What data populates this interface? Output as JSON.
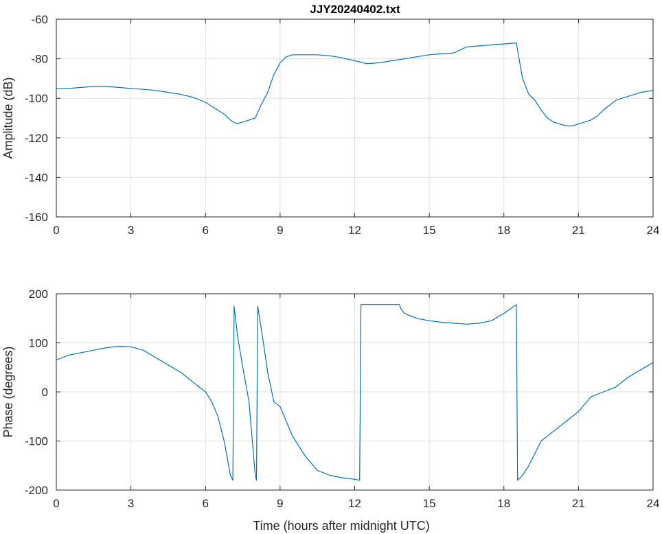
{
  "chart_data": [
    {
      "type": "line",
      "title": "JJY20240402.txt",
      "xlabel": "",
      "ylabel": "Amplitude (dB)",
      "xlim": [
        0,
        24
      ],
      "ylim": [
        -160,
        -60
      ],
      "xticks": [
        0,
        3,
        6,
        9,
        12,
        15,
        18,
        21,
        24
      ],
      "yticks": [
        -60,
        -80,
        -100,
        -120,
        -140,
        -160
      ],
      "ytick_labels": [
        "-60",
        "-80",
        "-100",
        "-120",
        "-140",
        "-160"
      ],
      "grid": true,
      "series": [
        {
          "color": "#0072bd",
          "x": [
            0,
            0.5,
            1,
            1.5,
            2,
            2.5,
            3,
            3.5,
            4,
            4.5,
            5,
            5.5,
            6,
            6.25,
            6.5,
            6.75,
            7,
            7.25,
            7.5,
            7.75,
            8,
            8.25,
            8.5,
            8.75,
            9,
            9.25,
            9.5,
            10,
            10.5,
            11,
            11.5,
            12,
            12.5,
            13,
            13.5,
            14,
            14.5,
            15,
            15.5,
            16,
            16.5,
            17,
            17.5,
            18,
            18.5,
            18.75,
            19,
            19.25,
            19.5,
            19.75,
            20,
            20.25,
            20.5,
            20.75,
            21,
            21.25,
            21.5,
            21.75,
            22,
            22.5,
            23,
            23.5,
            24
          ],
          "values": [
            -95,
            -95,
            -94.5,
            -94,
            -94,
            -94.5,
            -95,
            -95.5,
            -96,
            -97,
            -98,
            -99.5,
            -102,
            -104,
            -106,
            -108,
            -111,
            -113,
            -112,
            -111,
            -110,
            -103,
            -97,
            -88,
            -82,
            -79,
            -78,
            -78,
            -78,
            -78.5,
            -79.5,
            -81,
            -82.5,
            -82,
            -81,
            -80,
            -79,
            -78,
            -77.5,
            -77,
            -74,
            -73.5,
            -73,
            -72.5,
            -72,
            -90,
            -98,
            -101,
            -106,
            -110,
            -112,
            -113,
            -114,
            -114,
            -113,
            -112,
            -111,
            -109,
            -106,
            -101,
            -99,
            -97,
            -96
          ]
        }
      ]
    },
    {
      "type": "line",
      "title": "",
      "xlabel": "Time (hours after midnight UTC)",
      "ylabel": "Phase (degrees)",
      "xlim": [
        0,
        24
      ],
      "ylim": [
        -200,
        200
      ],
      "xticks": [
        0,
        3,
        6,
        9,
        12,
        15,
        18,
        21,
        24
      ],
      "yticks": [
        200,
        100,
        0,
        -100,
        -200
      ],
      "grid": true,
      "series": [
        {
          "color": "#0072bd",
          "x": [
            0,
            0.5,
            1,
            1.5,
            2,
            2.5,
            3,
            3.5,
            4,
            4.5,
            5,
            5.5,
            6,
            6.25,
            6.5,
            6.75,
            7,
            7.1,
            7.15,
            7.3,
            7.5,
            7.75,
            8,
            8.05,
            8.1,
            8.3,
            8.5,
            8.75,
            9,
            9.25,
            9.5,
            10,
            10.5,
            11,
            11.5,
            12,
            12.2,
            12.25,
            13,
            13.5,
            13.8,
            13.85,
            14,
            14.5,
            15,
            15.5,
            16,
            16.5,
            17,
            17.5,
            18,
            18.5,
            18.55,
            18.75,
            19,
            19.5,
            20,
            20.5,
            21,
            21.5,
            22,
            22.5,
            23,
            23.5,
            24
          ],
          "values": [
            65,
            75,
            80,
            85,
            90,
            93,
            92,
            85,
            70,
            55,
            40,
            20,
            0,
            -20,
            -50,
            -100,
            -170,
            -180,
            175,
            110,
            50,
            -20,
            -170,
            -180,
            175,
            110,
            40,
            -20,
            -30,
            -60,
            -90,
            -130,
            -160,
            -170,
            -175,
            -178,
            -180,
            178,
            178,
            178,
            178,
            170,
            160,
            150,
            145,
            142,
            140,
            138,
            140,
            145,
            160,
            178,
            -180,
            -170,
            -150,
            -100,
            -80,
            -60,
            -40,
            -10,
            0,
            10,
            30,
            45,
            60
          ]
        }
      ]
    }
  ]
}
